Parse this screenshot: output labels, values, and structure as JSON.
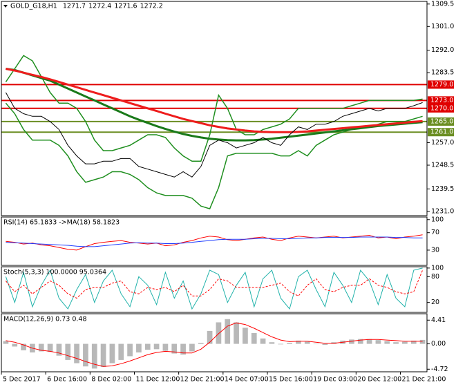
{
  "chart_data": [
    {
      "type": "line",
      "title": "GOLD_G18,H1",
      "ohlc": [
        1271.7,
        1272.4,
        1271.6,
        1272.2
      ],
      "ylim": [
        1229.4,
        1310.5
      ],
      "yticks": [
        1309.5,
        {
          "value": 1301.0,
          "label": "1301.0"
        },
        {
          "value": 1292.0,
          "label": "1292.0"
        },
        1283.5,
        {
          "value": 1257.0,
          "label": "1257.0"
        },
        1248.5,
        1239.5,
        {
          "value": 1231.0,
          "label": "1231.0"
        }
      ],
      "levels": [
        {
          "value": 1279.0,
          "label": "1279.0",
          "color": "#e00000"
        },
        {
          "value": 1273.0,
          "label": "1273.0",
          "color": "#e00000"
        },
        {
          "value": 1270.0,
          "label": "1270.0",
          "color": "#e00000"
        },
        {
          "value": 1265.0,
          "label": "1265.0",
          "color": "#6b8e23"
        },
        {
          "value": 1261.0,
          "label": "1261.0",
          "color": "#6b8e23"
        }
      ],
      "series": [
        {
          "color": "#1f8f1f",
          "width": 1.5,
          "values": [
            1280,
            1285,
            1290,
            1288,
            1282,
            1276,
            1272,
            1272,
            1270,
            1265,
            1258,
            1254,
            1254,
            1255,
            1256,
            1258,
            1260,
            1260,
            1259,
            1255,
            1252,
            1250,
            1250,
            1260,
            1275,
            1270,
            1262,
            1260,
            1260,
            1262,
            1263,
            1264,
            1266,
            1270,
            1270,
            1270,
            1270,
            1270,
            1270,
            1271,
            1272,
            1273,
            1273,
            1273,
            1273,
            1273,
            1273,
            1273.5
          ]
        },
        {
          "color": "#1f8f1f",
          "width": 1.5,
          "values": [
            1272,
            1268,
            1262,
            1258,
            1258,
            1258,
            1256,
            1252,
            1246,
            1242,
            1243,
            1244,
            1246,
            1246,
            1245,
            1243,
            1240,
            1238,
            1237,
            1237,
            1237,
            1236,
            1233,
            1232,
            1240,
            1252,
            1253,
            1253,
            1253,
            1253,
            1253,
            1252,
            1252,
            1254,
            1252,
            1256,
            1258,
            1260,
            1261,
            1262,
            1263,
            1263,
            1264,
            1265,
            1265,
            1265,
            1266,
            1267
          ]
        },
        {
          "color": "#1a7a1a",
          "width": 3,
          "values": [
            1285,
            1284.5,
            1283.5,
            1282.5,
            1281.5,
            1280.5,
            1279,
            1277.5,
            1276,
            1274.5,
            1273,
            1271.5,
            1270,
            1268.5,
            1267,
            1265.7,
            1264.5,
            1263.3,
            1262.2,
            1261.2,
            1260.3,
            1259.6,
            1259,
            1258.5,
            1258.2,
            1258,
            1257.9,
            1257.9,
            1258,
            1258.2,
            1258.5,
            1258.9,
            1259.3,
            1259.7,
            1260.1,
            1260.5,
            1260.9,
            1261.3,
            1261.7,
            1262.1,
            1262.5,
            1262.9,
            1263.3,
            1263.6,
            1263.9,
            1264.2,
            1264.5,
            1264.8
          ]
        },
        {
          "color": "#ee1c1c",
          "width": 3,
          "values": [
            1285,
            1284.3,
            1283.5,
            1282.7,
            1281.9,
            1281,
            1280,
            1279,
            1278,
            1277,
            1276,
            1275,
            1274,
            1273,
            1272,
            1271,
            1270,
            1269,
            1268,
            1267,
            1266,
            1265.2,
            1264.4,
            1263.6,
            1263,
            1262.4,
            1262,
            1261.6,
            1261.3,
            1261.1,
            1261,
            1261,
            1261,
            1261.1,
            1261.3,
            1261.6,
            1261.9,
            1262.2,
            1262.5,
            1262.8,
            1263.1,
            1263.4,
            1263.7,
            1264,
            1264.3,
            1264.6,
            1264.9,
            1265.2
          ]
        },
        {
          "color": "#000000",
          "width": 1,
          "values": [
            1276,
            1270,
            1268,
            1267,
            1267,
            1265,
            1262,
            1256,
            1252,
            1249,
            1249,
            1250,
            1250,
            1251,
            1251,
            1248,
            1247,
            1246,
            1245,
            1244,
            1246,
            1244,
            1248,
            1256,
            1258,
            1257,
            1255,
            1256,
            1257,
            1259,
            1257,
            1256,
            1260,
            1263,
            1262,
            1264,
            1264,
            1265,
            1267,
            1268,
            1269,
            1270,
            1269,
            1270,
            1270,
            1270,
            1271,
            1272.2
          ]
        }
      ]
    },
    {
      "type": "line",
      "title": "RSI(14) 65.1833  ->MA(18) 58.1823",
      "ylim": [
        -5,
        106
      ],
      "yticks": [
        100,
        70,
        30
      ],
      "series": [
        {
          "color": "#ff0000",
          "width": 1,
          "values": [
            50,
            48,
            44,
            46,
            42,
            40,
            36,
            32,
            30,
            38,
            45,
            48,
            50,
            52,
            48,
            46,
            44,
            46,
            40,
            42,
            48,
            52,
            58,
            62,
            60,
            54,
            52,
            55,
            58,
            60,
            55,
            52,
            58,
            62,
            60,
            58,
            60,
            62,
            58,
            60,
            62,
            64,
            58,
            60,
            56,
            60,
            62,
            65.1833
          ]
        },
        {
          "color": "#1e3cff",
          "width": 1,
          "values": [
            48,
            47,
            46,
            45,
            44,
            43,
            42,
            41,
            39,
            38,
            38,
            40,
            42,
            44,
            46,
            47,
            46,
            46,
            45,
            45,
            46,
            48,
            50,
            52,
            54,
            55,
            55,
            55,
            56,
            57,
            57,
            56,
            56,
            57,
            58,
            58,
            59,
            59,
            59,
            59,
            60,
            60,
            60,
            60,
            59,
            59,
            58,
            58.1823
          ]
        }
      ]
    },
    {
      "type": "line",
      "title": "Stoch(5,3,3) 100.0000 95.0364",
      "ylim": [
        -3,
        103
      ],
      "yticks": [
        100,
        80,
        20
      ],
      "series": [
        {
          "color": "#20b2aa",
          "width": 1,
          "values": [
            80,
            20,
            90,
            10,
            60,
            95,
            30,
            5,
            50,
            85,
            20,
            70,
            95,
            40,
            10,
            80,
            60,
            15,
            90,
            30,
            70,
            5,
            40,
            95,
            85,
            20,
            60,
            90,
            10,
            75,
            95,
            30,
            5,
            80,
            95,
            50,
            10,
            90,
            60,
            20,
            95,
            70,
            15,
            85,
            30,
            10,
            95,
            100
          ]
        },
        {
          "color": "#ff0000",
          "width": 1,
          "dash": true,
          "values": [
            70,
            45,
            60,
            40,
            55,
            70,
            60,
            40,
            30,
            50,
            55,
            55,
            65,
            70,
            45,
            40,
            55,
            50,
            55,
            45,
            60,
            35,
            35,
            50,
            75,
            70,
            55,
            55,
            55,
            55,
            60,
            65,
            45,
            35,
            60,
            75,
            50,
            45,
            55,
            60,
            60,
            75,
            60,
            55,
            45,
            40,
            45,
            95.0364
          ]
        }
      ]
    },
    {
      "type": "combo",
      "title": "MACD(12,26,9) 0.73 0.48",
      "ylim": [
        -5.2,
        5.6
      ],
      "yticks": [
        4.41,
        {
          "value": 0,
          "label": "0.00"
        },
        -4.72
      ],
      "categories": [
        "5 Dec 2017",
        null,
        null,
        null,
        null,
        "6 Dec 16:00",
        null,
        null,
        null,
        null,
        "8 Dec 02:00",
        null,
        null,
        null,
        null,
        "11 Dec 12:00",
        null,
        null,
        null,
        null,
        "12 Dec 21:00",
        null,
        null,
        null,
        null,
        "14 Dec 07:00",
        null,
        null,
        null,
        null,
        "15 Dec 16:00",
        null,
        null,
        null,
        null,
        "19 Dec 03:00",
        null,
        null,
        null,
        null,
        "20 Dec 12:00",
        null,
        null,
        null,
        null,
        "21 Dec 21:00",
        null,
        null
      ],
      "series": [
        {
          "type": "bar",
          "color": "#b8b8b8",
          "values": [
            0.5,
            -0.5,
            -1.2,
            -1.6,
            -1.4,
            -1.5,
            -2.2,
            -3.0,
            -3.6,
            -4.2,
            -4.6,
            -4.3,
            -3.6,
            -3.0,
            -2.3,
            -1.6,
            -1.1,
            -1.0,
            -1.3,
            -1.8,
            -2.0,
            -1.4,
            0.2,
            2.4,
            4.0,
            4.6,
            4.0,
            3.0,
            2.0,
            1.0,
            0.3,
            -0.1,
            0.2,
            0.6,
            0.4,
            0.0,
            -0.2,
            0.3,
            0.6,
            0.8,
            0.9,
            0.9,
            0.7,
            0.5,
            0.3,
            0.4,
            0.6,
            0.73
          ]
        },
        {
          "type": "line",
          "color": "#ff0000",
          "width": 1,
          "values": [
            0.6,
            0.3,
            -0.2,
            -0.8,
            -1.2,
            -1.4,
            -1.7,
            -2.2,
            -2.7,
            -3.3,
            -3.8,
            -4.2,
            -4.1,
            -3.7,
            -3.2,
            -2.6,
            -2.0,
            -1.6,
            -1.4,
            -1.5,
            -1.7,
            -1.7,
            -1.0,
            0.3,
            1.9,
            3.3,
            3.9,
            3.6,
            2.9,
            2.1,
            1.3,
            0.7,
            0.4,
            0.5,
            0.5,
            0.3,
            0.1,
            0.1,
            0.3,
            0.5,
            0.7,
            0.8,
            0.8,
            0.7,
            0.6,
            0.5,
            0.5,
            0.48
          ]
        }
      ]
    }
  ]
}
